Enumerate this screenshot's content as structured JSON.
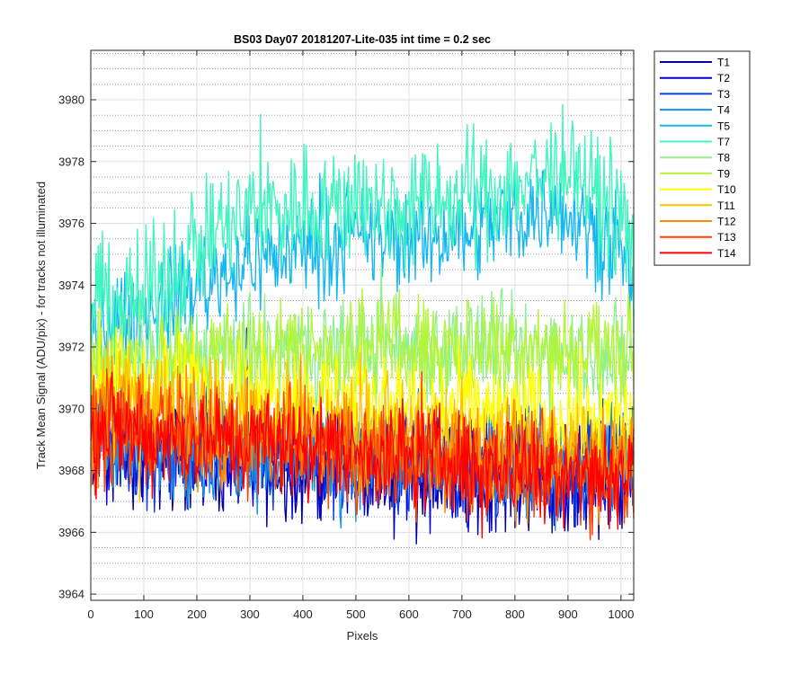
{
  "chart_data": {
    "type": "line",
    "title": "BS03 Day07 20181207-Lite-035 int time = 0.2 sec",
    "xlabel": "Pixels",
    "ylabel": "Track Mean Signal (ADU/pix) - for tracks not illuminated",
    "xlim": [
      0,
      1024
    ],
    "ylim": [
      3963.8,
      3981.6
    ],
    "xticks": [
      0,
      100,
      200,
      300,
      400,
      500,
      600,
      700,
      800,
      900,
      1000
    ],
    "yticks": [
      3964,
      3966,
      3968,
      3970,
      3972,
      3974,
      3976,
      3978,
      3980
    ],
    "grid": "on (major solid, minor dotted)",
    "legend_position": "outside-right-top",
    "series": [
      {
        "name": "T1",
        "color": "#0000aa",
        "mean_profile": {
          "x": [
            0,
            100,
            200,
            300,
            400,
            500,
            600,
            700,
            800,
            900,
            1000,
            1024
          ],
          "y": [
            3969.0,
            3968.6,
            3968.4,
            3968.3,
            3968.2,
            3968.1,
            3968.0,
            3967.9,
            3967.9,
            3967.8,
            3967.9,
            3967.9
          ]
        },
        "amplitude": 2.6
      },
      {
        "name": "T2",
        "color": "#0000dd",
        "mean_profile": {
          "x": [
            0,
            100,
            200,
            300,
            400,
            500,
            600,
            700,
            800,
            900,
            1000,
            1024
          ],
          "y": [
            3969.0,
            3968.7,
            3968.5,
            3968.4,
            3968.3,
            3968.2,
            3968.1,
            3968.0,
            3968.0,
            3967.9,
            3968.0,
            3968.0
          ]
        },
        "amplitude": 2.5
      },
      {
        "name": "T3",
        "color": "#0a3fe6",
        "mean_profile": {
          "x": [
            0,
            100,
            200,
            300,
            400,
            500,
            600,
            700,
            800,
            900,
            1000,
            1024
          ],
          "y": [
            3969.1,
            3968.8,
            3968.6,
            3968.5,
            3968.4,
            3968.3,
            3968.2,
            3968.1,
            3968.1,
            3968.0,
            3968.1,
            3968.1
          ]
        },
        "amplitude": 2.5
      },
      {
        "name": "T4",
        "color": "#1a90e6",
        "mean_profile": {
          "x": [
            0,
            100,
            200,
            300,
            400,
            500,
            600,
            700,
            800,
            900,
            1000,
            1024
          ],
          "y": [
            3969.2,
            3968.9,
            3968.7,
            3968.6,
            3968.5,
            3968.4,
            3968.3,
            3968.2,
            3968.2,
            3968.1,
            3968.2,
            3968.2
          ]
        },
        "amplitude": 2.5
      },
      {
        "name": "T5",
        "color": "#14b8f0",
        "mean_profile": {
          "x": [
            0,
            100,
            200,
            300,
            400,
            500,
            600,
            700,
            800,
            900,
            1000,
            1024
          ],
          "y": [
            3972.5,
            3973.0,
            3974.0,
            3974.8,
            3975.2,
            3975.5,
            3975.4,
            3975.8,
            3976.3,
            3976.6,
            3975.0,
            3973.2
          ]
        },
        "amplitude": 2.4
      },
      {
        "name": "T7",
        "color": "#40f5c0",
        "mean_profile": {
          "x": [
            0,
            100,
            200,
            300,
            400,
            500,
            600,
            700,
            800,
            900,
            1000,
            1024
          ],
          "y": [
            3973.5,
            3973.5,
            3975.3,
            3976.3,
            3976.6,
            3976.6,
            3976.5,
            3976.8,
            3977.3,
            3977.7,
            3976.4,
            3974.5
          ]
        },
        "amplitude": 3.0
      },
      {
        "name": "T8",
        "color": "#90f090",
        "mean_profile": {
          "x": [
            0,
            100,
            200,
            300,
            400,
            500,
            600,
            700,
            800,
            900,
            1000,
            1024
          ],
          "y": [
            3971.5,
            3971.6,
            3971.7,
            3971.8,
            3971.9,
            3972.0,
            3972.0,
            3972.0,
            3972.0,
            3971.9,
            3971.8,
            3971.6
          ]
        },
        "amplitude": 2.5
      },
      {
        "name": "T9",
        "color": "#b4f53c",
        "mean_profile": {
          "x": [
            0,
            100,
            200,
            300,
            400,
            500,
            600,
            700,
            800,
            900,
            1000,
            1024
          ],
          "y": [
            3971.3,
            3971.5,
            3971.6,
            3971.8,
            3971.9,
            3972.0,
            3972.0,
            3972.1,
            3972.1,
            3972.0,
            3971.9,
            3971.7
          ]
        },
        "amplitude": 2.6
      },
      {
        "name": "T10",
        "color": "#ffff00",
        "mean_profile": {
          "x": [
            0,
            100,
            200,
            300,
            400,
            500,
            600,
            700,
            800,
            900,
            1000,
            1024
          ],
          "y": [
            3971.0,
            3970.9,
            3970.7,
            3970.6,
            3970.4,
            3970.3,
            3970.1,
            3970.0,
            3969.8,
            3969.7,
            3969.6,
            3969.6
          ]
        },
        "amplitude": 2.5
      },
      {
        "name": "T11",
        "color": "#ffc000",
        "mean_profile": {
          "x": [
            0,
            100,
            200,
            300,
            400,
            500,
            600,
            700,
            800,
            900,
            1000,
            1024
          ],
          "y": [
            3970.3,
            3970.1,
            3969.9,
            3969.7,
            3969.6,
            3969.4,
            3969.2,
            3969.0,
            3968.9,
            3968.8,
            3968.7,
            3968.7
          ]
        },
        "amplitude": 2.5
      },
      {
        "name": "T12",
        "color": "#ff8c00",
        "mean_profile": {
          "x": [
            0,
            100,
            200,
            300,
            400,
            500,
            600,
            700,
            800,
            900,
            1000,
            1024
          ],
          "y": [
            3969.7,
            3969.5,
            3969.3,
            3969.1,
            3969.0,
            3968.8,
            3968.6,
            3968.4,
            3968.3,
            3968.2,
            3968.1,
            3968.1
          ]
        },
        "amplitude": 2.6
      },
      {
        "name": "T13",
        "color": "#ff4000",
        "mean_profile": {
          "x": [
            0,
            100,
            200,
            300,
            400,
            500,
            600,
            700,
            800,
            900,
            1000,
            1024
          ],
          "y": [
            3969.5,
            3969.3,
            3969.1,
            3968.9,
            3968.8,
            3968.6,
            3968.4,
            3968.2,
            3968.1,
            3968.0,
            3967.9,
            3967.9
          ]
        },
        "amplitude": 2.6
      },
      {
        "name": "T14",
        "color": "#ff0000",
        "mean_profile": {
          "x": [
            0,
            100,
            200,
            300,
            400,
            500,
            600,
            700,
            800,
            900,
            1000,
            1024
          ],
          "y": [
            3969.5,
            3969.2,
            3969.0,
            3968.9,
            3968.8,
            3968.6,
            3968.5,
            3968.3,
            3968.2,
            3968.1,
            3968.0,
            3968.0
          ]
        },
        "amplitude": 2.5
      }
    ]
  }
}
